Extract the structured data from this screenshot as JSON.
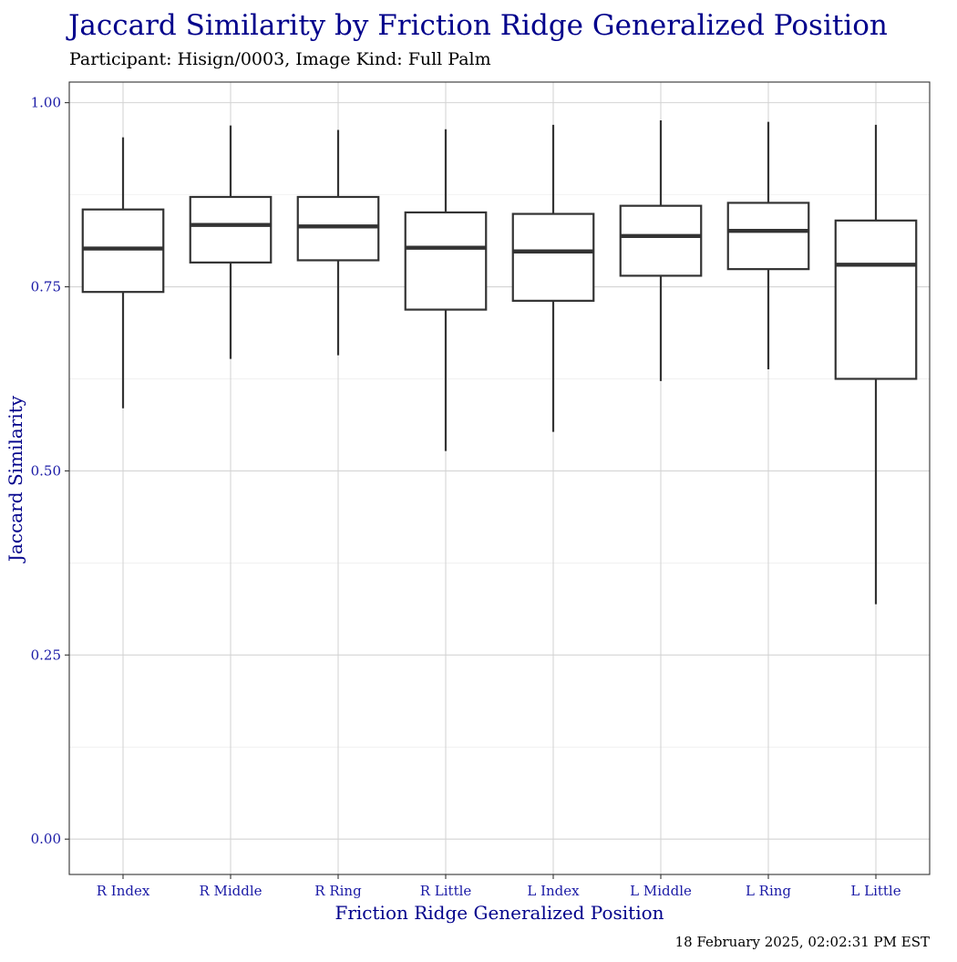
{
  "chart_data": {
    "type": "box",
    "title": "Jaccard Similarity by Friction Ridge Generalized Position",
    "subtitle": "Participant: Hisign/0003, Image Kind: Full Palm",
    "xlabel": "Friction Ridge Generalized Position",
    "ylabel": "Jaccard Similarity",
    "caption": "18 February 2025, 02:02:31 PM EST",
    "ylim": [
      -0.048,
      1.028
    ],
    "yticks": [
      0.0,
      0.25,
      0.5,
      0.75,
      1.0
    ],
    "ytick_labels": [
      "0.00",
      "0.25",
      "0.50",
      "0.75",
      "1.00"
    ],
    "grid": true,
    "categories": [
      "R Index",
      "R Middle",
      "R Ring",
      "R Little",
      "L Index",
      "L Middle",
      "L Ring",
      "L Little"
    ],
    "boxes": [
      {
        "label": "R Index",
        "whisker_low": 0.585,
        "q1": 0.743,
        "median": 0.802,
        "q3": 0.855,
        "whisker_high": 0.953
      },
      {
        "label": "R Middle",
        "whisker_low": 0.652,
        "q1": 0.783,
        "median": 0.834,
        "q3": 0.872,
        "whisker_high": 0.969
      },
      {
        "label": "R Ring",
        "whisker_low": 0.657,
        "q1": 0.786,
        "median": 0.832,
        "q3": 0.872,
        "whisker_high": 0.963
      },
      {
        "label": "R Little",
        "whisker_low": 0.527,
        "q1": 0.719,
        "median": 0.803,
        "q3": 0.851,
        "whisker_high": 0.964
      },
      {
        "label": "L Index",
        "whisker_low": 0.553,
        "q1": 0.731,
        "median": 0.798,
        "q3": 0.849,
        "whisker_high": 0.97
      },
      {
        "label": "L Middle",
        "whisker_low": 0.622,
        "q1": 0.765,
        "median": 0.819,
        "q3": 0.86,
        "whisker_high": 0.976
      },
      {
        "label": "L Ring",
        "whisker_low": 0.638,
        "q1": 0.774,
        "median": 0.826,
        "q3": 0.864,
        "whisker_high": 0.974
      },
      {
        "label": "L Little",
        "whisker_low": 0.319,
        "q1": 0.625,
        "median": 0.78,
        "q3": 0.84,
        "whisker_high": 0.97
      }
    ]
  }
}
